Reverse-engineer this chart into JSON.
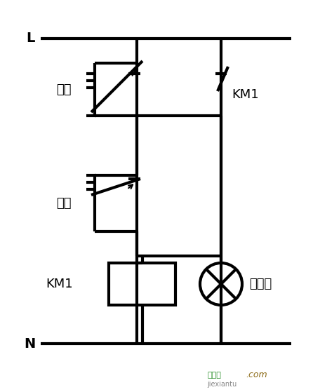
{
  "bg_color": "#ffffff",
  "line_color": "#000000",
  "line_width": 3.0,
  "fig_w": 4.46,
  "fig_h": 5.59,
  "label_L": "L",
  "label_N": "N",
  "label_start": "启动",
  "label_stop": "停止",
  "label_km1_contact": "KM1",
  "label_km1_coil": "KM1",
  "label_lamp": "指示灯",
  "watermark1": "接线图",
  "watermark2": ".com",
  "wm_sub": "jiexiantu"
}
